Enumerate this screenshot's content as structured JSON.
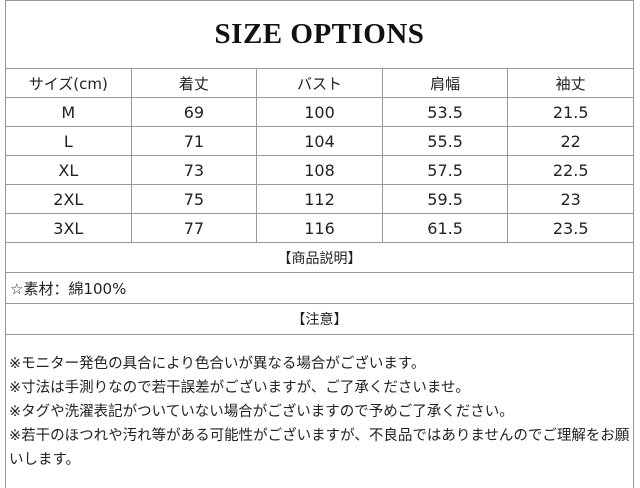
{
  "title": "SIZE OPTIONS",
  "table": {
    "headers": [
      "サイズ(cm)",
      "着丈",
      "バスト",
      "肩幅",
      "袖丈"
    ],
    "rows": [
      [
        "M",
        "69",
        "100",
        "53.5",
        "21.5"
      ],
      [
        "L",
        "71",
        "104",
        "55.5",
        "22"
      ],
      [
        "XL",
        "73",
        "108",
        "57.5",
        "22.5"
      ],
      [
        "2XL",
        "75",
        "112",
        "59.5",
        "23"
      ],
      [
        "3XL",
        "77",
        "116",
        "61.5",
        "23.5"
      ]
    ]
  },
  "description_heading": "【商品説明】",
  "material": "☆素材：綿100%",
  "notes_heading": "【注意】",
  "notes": [
    "※モニター発色の具合により色合いが異なる場合がございます。",
    "※寸法は手測りなので若干誤差がございますが、ご了承くださいませ。",
    "※タグや洗濯表記がついていない場合がございますので予めご了承ください。",
    "※若干のほつれや汚れ等がある可能性がございますが、不良品ではありませんのでご理解をお願いします。"
  ]
}
